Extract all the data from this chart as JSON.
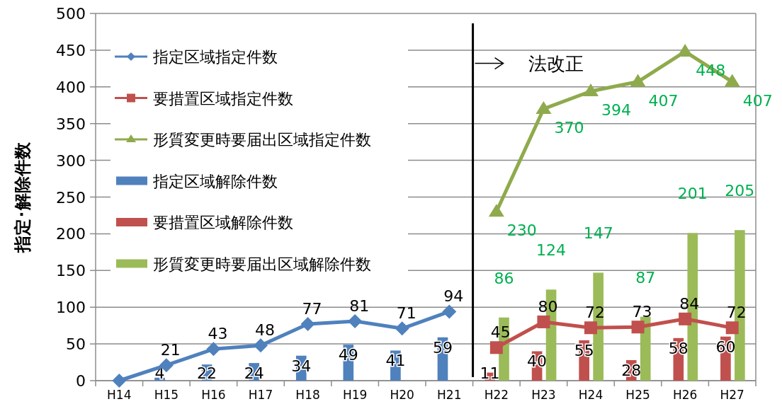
{
  "chart_data": {
    "type": "bar",
    "ylabel": "指定･解除件数",
    "categories": [
      "H14",
      "H15",
      "H16",
      "H17",
      "H18",
      "H19",
      "H20",
      "H21",
      "H22",
      "H23",
      "H24",
      "H25",
      "H26",
      "H27"
    ],
    "ylim": [
      0,
      500
    ],
    "yticks": [
      0,
      50,
      100,
      150,
      200,
      250,
      300,
      350,
      400,
      450,
      500
    ],
    "grid": "y",
    "legend": "top left",
    "ref_lines": [
      {
        "axis": "x",
        "value": "H22",
        "label": "法改正",
        "color": "#000000"
      }
    ],
    "series": [
      {
        "name": "指定区域解除件数",
        "color": "#4f81bd",
        "values": [
          0,
          4,
          22,
          24,
          34,
          49,
          41,
          59,
          null,
          null,
          null,
          null,
          null,
          null
        ],
        "value_labels": [
          null,
          "4",
          "22",
          "24",
          "34",
          "49",
          "41",
          "59",
          null,
          null,
          null,
          null,
          null,
          null
        ]
      },
      {
        "name": "要措置区域解除件数",
        "color": "#c0504d",
        "values": [
          null,
          null,
          null,
          null,
          null,
          null,
          null,
          null,
          11,
          40,
          55,
          28,
          58,
          60
        ],
        "value_labels": [
          null,
          null,
          null,
          null,
          null,
          null,
          null,
          null,
          "11",
          "40",
          "55",
          "28",
          "58",
          "60"
        ]
      },
      {
        "name": "形質変更時要届出区域解除件数",
        "color": "#9bbb59",
        "values": [
          null,
          null,
          null,
          null,
          null,
          null,
          null,
          null,
          86,
          124,
          147,
          87,
          201,
          205
        ],
        "value_labels": [
          null,
          null,
          null,
          null,
          null,
          null,
          null,
          null,
          "86",
          "124",
          "147",
          "87",
          "201",
          "205"
        ]
      },
      {
        "name": "指定区域指定件数",
        "type": "line",
        "marker": "diamond",
        "color": "#4f81bd",
        "values": [
          0,
          21,
          43,
          48,
          77,
          81,
          71,
          94,
          null,
          null,
          null,
          null,
          null,
          null
        ],
        "value_labels": [
          null,
          "21",
          "43",
          "48",
          "77",
          "81",
          "71",
          "94",
          null,
          null,
          null,
          null,
          null,
          null
        ]
      },
      {
        "name": "要措置区域指定件数",
        "type": "line",
        "marker": "square",
        "color": "#c0504d",
        "values": [
          null,
          null,
          null,
          null,
          null,
          null,
          null,
          null,
          45,
          80,
          72,
          73,
          84,
          72
        ],
        "value_labels": [
          null,
          null,
          null,
          null,
          null,
          null,
          null,
          null,
          "45",
          "80",
          "72",
          "73",
          "84",
          "72"
        ]
      },
      {
        "name": "形質変更時要届出区域指定件数",
        "type": "line",
        "marker": "triangle",
        "color": "#8faa4c",
        "values": [
          null,
          null,
          null,
          null,
          null,
          null,
          null,
          null,
          230,
          370,
          394,
          407,
          448,
          407
        ],
        "value_labels": [
          null,
          null,
          null,
          null,
          null,
          null,
          null,
          null,
          "230",
          "370",
          "394",
          "407",
          "448",
          "407"
        ]
      }
    ]
  }
}
